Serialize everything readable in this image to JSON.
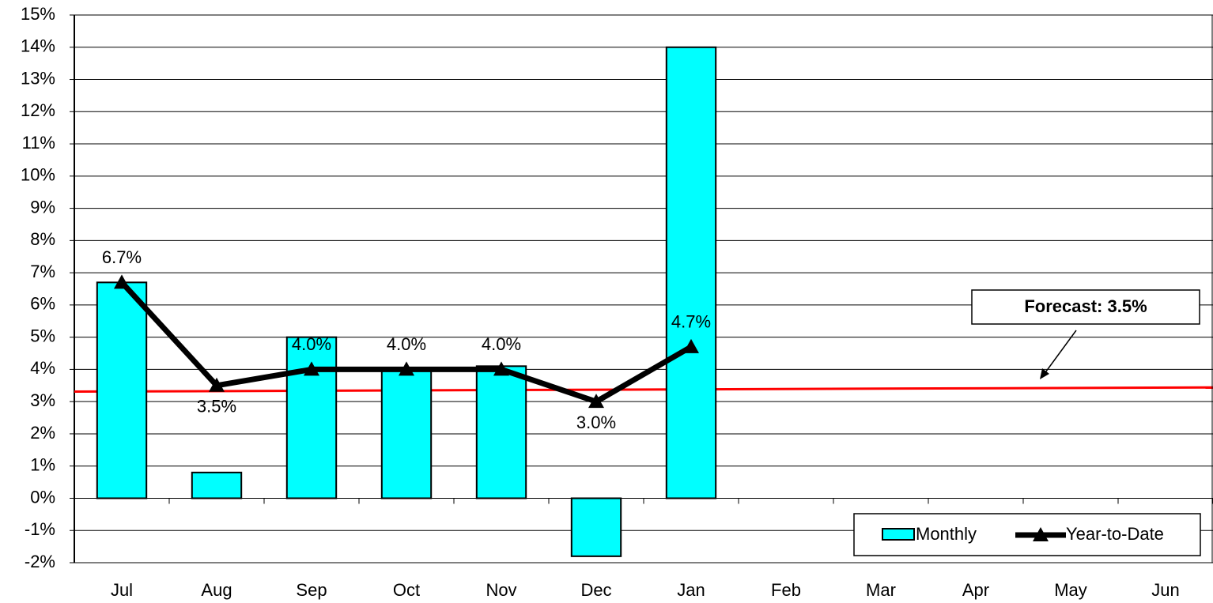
{
  "chart_data": {
    "type": "bar-line",
    "categories": [
      "Jul",
      "Aug",
      "Sep",
      "Oct",
      "Nov",
      "Dec",
      "Jan",
      "Feb",
      "Mar",
      "Apr",
      "May",
      "Jun"
    ],
    "series": [
      {
        "name": "Monthly",
        "type": "bar",
        "color": "#00ffff",
        "values": [
          6.7,
          0.8,
          5.0,
          4.0,
          4.1,
          -1.8,
          14.0,
          null,
          null,
          null,
          null,
          null
        ]
      },
      {
        "name": "Year-to-Date",
        "type": "line",
        "color": "#000000",
        "values": [
          6.7,
          3.5,
          4.0,
          4.0,
          4.0,
          3.0,
          4.7,
          null,
          null,
          null,
          null,
          null
        ],
        "value_labels": [
          "6.7%",
          "3.5%",
          "4.0%",
          "4.0%",
          "4.0%",
          "3.0%",
          "4.7%",
          null,
          null,
          null,
          null,
          null
        ]
      }
    ],
    "forecast": {
      "label": "Forecast: 3.5%",
      "color": "#ff0000",
      "start": 3.31,
      "end": 3.44
    },
    "ylim": [
      -2,
      15
    ],
    "yticks": [
      {
        "value": -2,
        "label": "-2%"
      },
      {
        "value": -1,
        "label": "-1%"
      },
      {
        "value": 0,
        "label": "0%"
      },
      {
        "value": 1,
        "label": "1%"
      },
      {
        "value": 2,
        "label": "2%"
      },
      {
        "value": 3,
        "label": "3%"
      },
      {
        "value": 4,
        "label": "4%"
      },
      {
        "value": 5,
        "label": "5%"
      },
      {
        "value": 6,
        "label": "6%"
      },
      {
        "value": 7,
        "label": "7%"
      },
      {
        "value": 8,
        "label": "8%"
      },
      {
        "value": 9,
        "label": "9%"
      },
      {
        "value": 10,
        "label": "10%"
      },
      {
        "value": 11,
        "label": "11%"
      },
      {
        "value": 12,
        "label": "12%"
      },
      {
        "value": 13,
        "label": "13%"
      },
      {
        "value": 14,
        "label": "14%"
      },
      {
        "value": 15,
        "label": "15%"
      }
    ],
    "grid": true,
    "legend": "bottom-right"
  }
}
